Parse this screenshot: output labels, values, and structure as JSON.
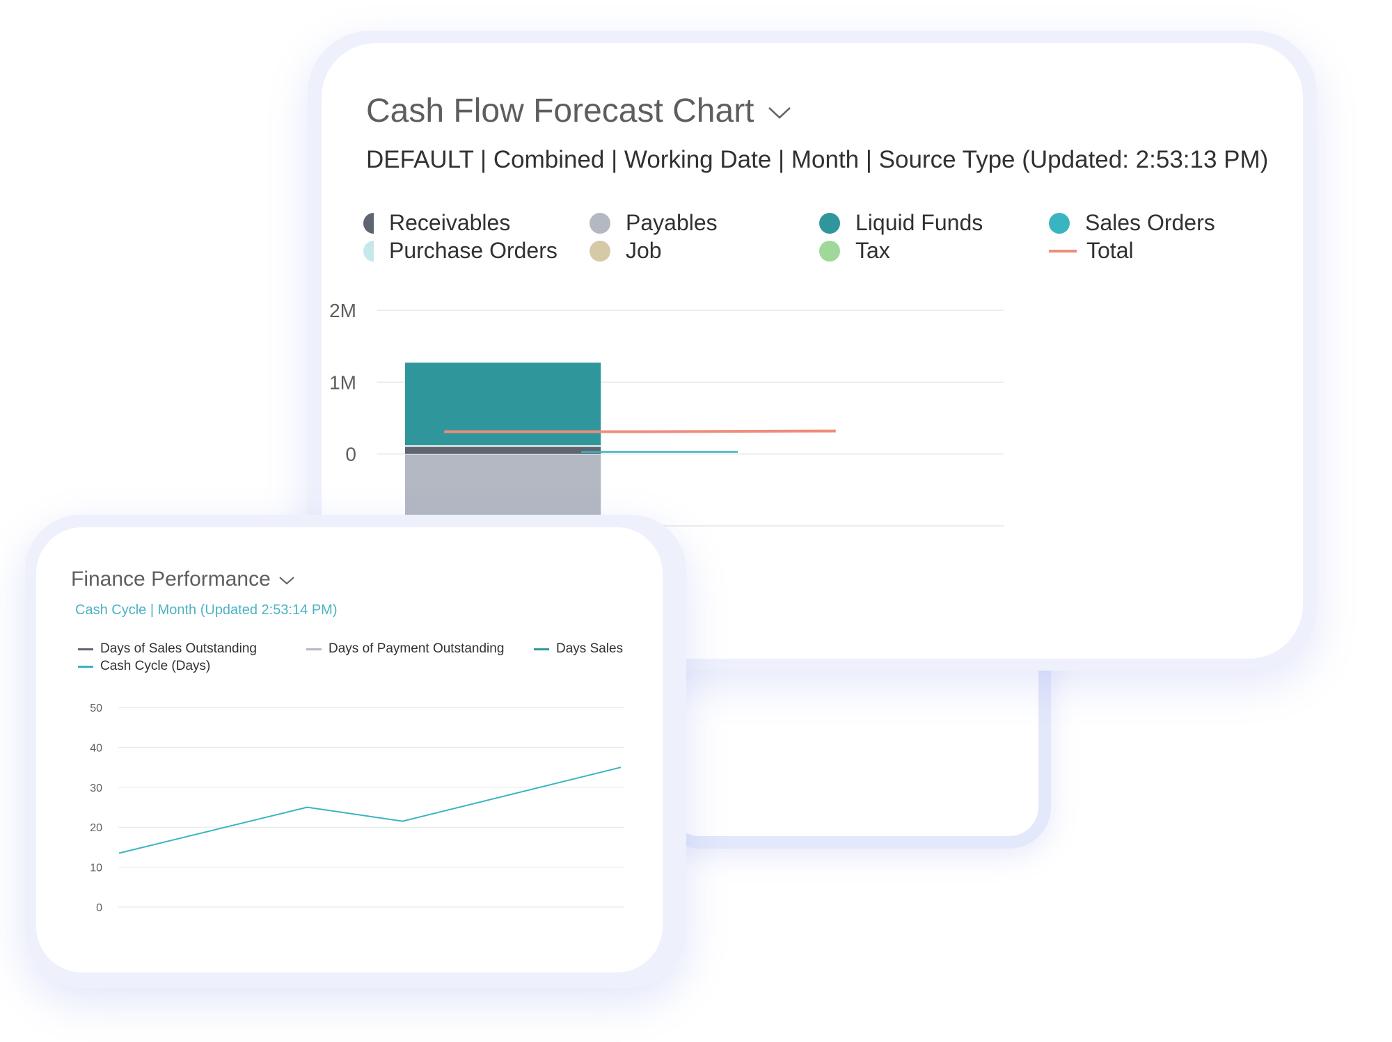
{
  "cash_flow": {
    "title": "Cash Flow Forecast Chart",
    "subtitle": "DEFAULT | Combined | Working Date | Month | Source Type (Updated:  2:53:13 PM)",
    "legend": [
      {
        "label": "Receivables",
        "color": "#5e6470",
        "marker": "half-circle"
      },
      {
        "label": "Payables",
        "color": "#b3b8c2",
        "marker": "circle"
      },
      {
        "label": "Liquid Funds",
        "color": "#2f979b",
        "marker": "circle"
      },
      {
        "label": "Sales Orders",
        "color": "#38b5c1",
        "marker": "circle"
      },
      {
        "label": "Purchase Orders",
        "color": "#c6e8ea",
        "marker": "half-circle"
      },
      {
        "label": "Job",
        "color": "#d6c9a7",
        "marker": "circle"
      },
      {
        "label": "Tax",
        "color": "#a0d89a",
        "marker": "circle"
      },
      {
        "label": "Total",
        "color": "#ef8c7b",
        "marker": "line"
      }
    ]
  },
  "finance": {
    "title": "Finance Performance",
    "subtitle": "Cash Cycle | Month (Updated  2:53:14 PM)",
    "legend": [
      {
        "label": "Days of Sales Outstanding",
        "color": "#5e6470"
      },
      {
        "label": "Days of Payment Outstanding",
        "color": "#b3b8c2"
      },
      {
        "label": "Days Sales",
        "color": "#2f979b"
      },
      {
        "label": "Cash Cycle (Days)",
        "color": "#38b5c1"
      }
    ]
  },
  "chart_data": [
    {
      "type": "bar",
      "title": "Cash Flow Forecast Chart",
      "y_ticks": [
        "2M",
        "1M",
        "0"
      ],
      "ylim": [
        -1000000,
        2000000
      ],
      "stacked_bar": {
        "Liquid Funds": 1150000,
        "Receivables": 120000,
        "Payables": -1000000
      },
      "series": [
        {
          "name": "Total",
          "type": "line",
          "x": [
            0.5,
            1.5,
            2.5
          ],
          "values": [
            310000,
            310000,
            320000
          ]
        },
        {
          "name": "Sales Orders",
          "type": "line",
          "x": [
            1.2,
            2.0
          ],
          "values": [
            30000,
            30000
          ]
        }
      ],
      "grid": true,
      "legend_position": "top"
    },
    {
      "type": "line",
      "title": "Finance Performance",
      "y_ticks": [
        "50",
        "40",
        "30",
        "20",
        "10",
        "0"
      ],
      "ylim": [
        0,
        50
      ],
      "series": [
        {
          "name": "Cash Cycle (Days)",
          "values": [
            13.5,
            25,
            21.5,
            35
          ]
        }
      ],
      "grid": true,
      "legend_position": "top"
    }
  ]
}
